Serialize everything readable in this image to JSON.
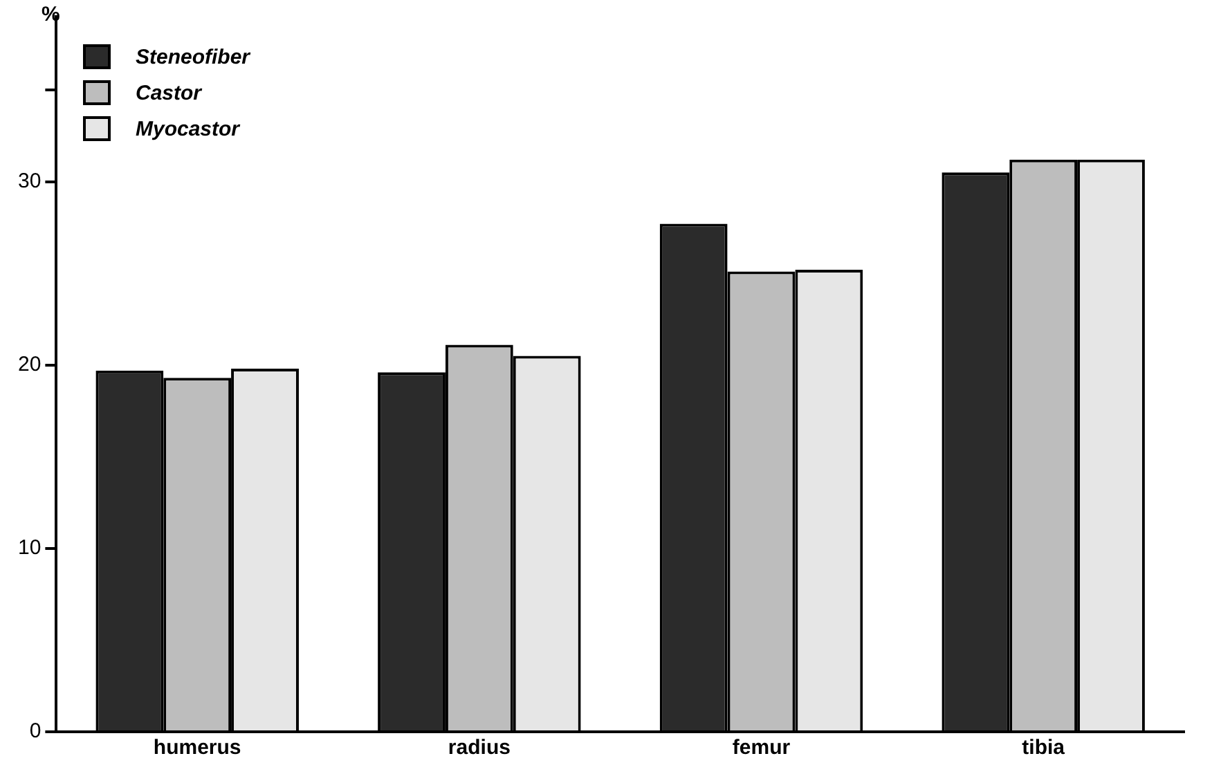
{
  "chart_data": {
    "type": "bar",
    "ylabel": "%",
    "categories": [
      "humerus",
      "radius",
      "femur",
      "tibia"
    ],
    "series": [
      {
        "name": "Steneofiber",
        "color": "#2b2b2b",
        "values": [
          19.7,
          19.6,
          27.7,
          30.5
        ]
      },
      {
        "name": "Castor",
        "color": "#bdbdbd",
        "values": [
          19.3,
          21.1,
          25.1,
          31.2
        ]
      },
      {
        "name": "Myocastor",
        "color": "#e6e6e6",
        "values": [
          19.8,
          20.5,
          25.2,
          31.2
        ]
      }
    ],
    "ylim": [
      0,
      39
    ],
    "yticks": [
      0,
      10,
      20,
      30,
      {
        "value": 35,
        "label": null
      }
    ],
    "grid": false,
    "legend": "top left"
  }
}
